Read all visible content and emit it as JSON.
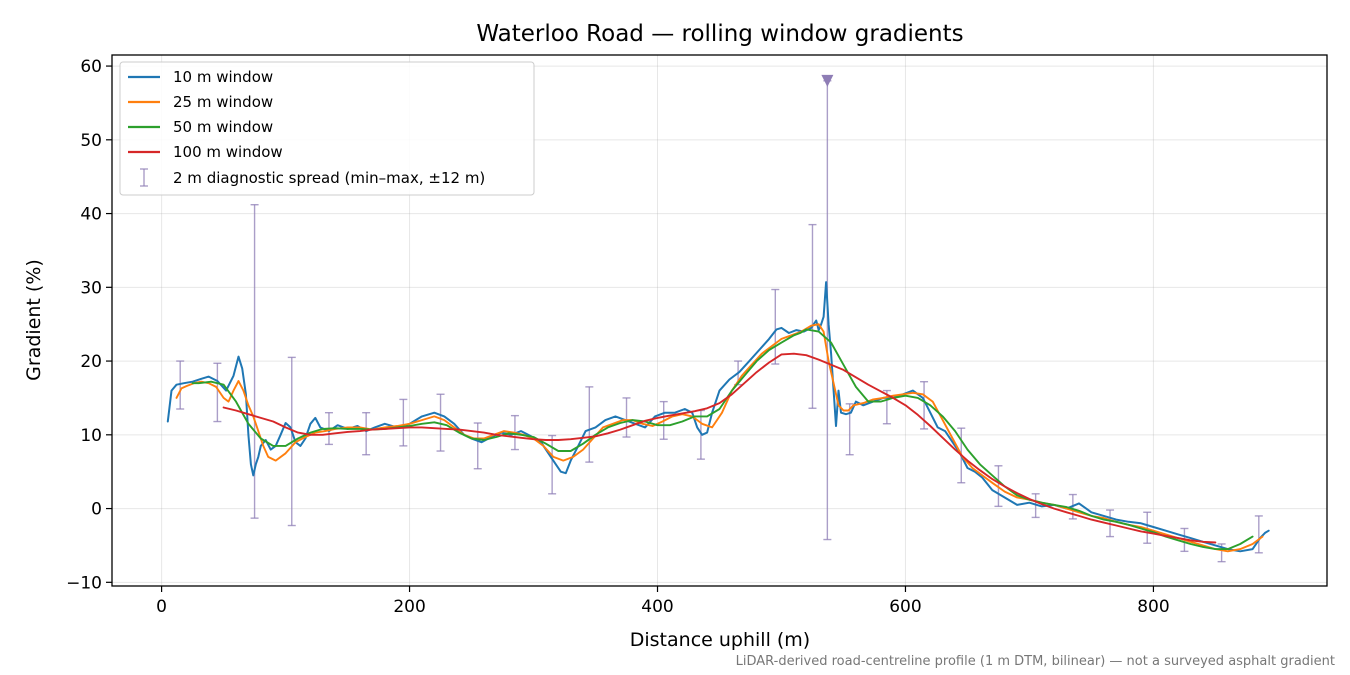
{
  "chart_data": {
    "type": "line",
    "title": "Waterloo Road — rolling window gradients",
    "xlabel": "Distance uphill (m)",
    "ylabel": "Gradient (%)",
    "xlim": [
      -40,
      940
    ],
    "ylim": [
      -10.5,
      61.5
    ],
    "xticks": [
      0,
      200,
      400,
      600,
      800
    ],
    "yticks": [
      -10,
      0,
      10,
      20,
      30,
      40,
      50,
      60
    ],
    "ytick_labels": [
      "−10",
      "0",
      "10",
      "20",
      "30",
      "40",
      "50",
      "60"
    ],
    "grid": true,
    "legend_position": "upper-left",
    "footnote": "LiDAR-derived road-centreline profile (1 m DTM, bilinear) — not a surveyed asphalt gradient",
    "series": [
      {
        "name": "10 m window",
        "color": "#1f77b4",
        "x": [
          5,
          8,
          12,
          18,
          25,
          32,
          38,
          45,
          52,
          58,
          62,
          65,
          68,
          70,
          72,
          74,
          76,
          78,
          80,
          84,
          88,
          92,
          96,
          100,
          104,
          108,
          112,
          116,
          120,
          124,
          128,
          135,
          142,
          150,
          158,
          165,
          172,
          180,
          190,
          200,
          210,
          220,
          228,
          236,
          244,
          250,
          258,
          266,
          274,
          282,
          290,
          298,
          306,
          312,
          318,
          322,
          326,
          330,
          336,
          342,
          350,
          358,
          366,
          374,
          382,
          390,
          398,
          406,
          414,
          422,
          428,
          432,
          436,
          440,
          444,
          450,
          458,
          466,
          474,
          482,
          490,
          496,
          500,
          506,
          512,
          518,
          524,
          528,
          530,
          532,
          534,
          536,
          538,
          540,
          542,
          544,
          546,
          548,
          552,
          556,
          560,
          566,
          574,
          582,
          590,
          598,
          606,
          614,
          620,
          626,
          632,
          638,
          644,
          650,
          656,
          662,
          670,
          680,
          690,
          700,
          710,
          720,
          730,
          740,
          750,
          760,
          770,
          780,
          790,
          800,
          810,
          820,
          830,
          840,
          850,
          860,
          870,
          880,
          886,
          890,
          893
        ],
        "y": [
          11.8,
          16.0,
          16.8,
          17.0,
          17.2,
          17.6,
          17.9,
          17.3,
          16.0,
          18.0,
          20.6,
          19.0,
          15.5,
          10.0,
          6.0,
          4.5,
          6.0,
          7.0,
          8.5,
          9.3,
          8.0,
          8.5,
          10.0,
          11.6,
          11.0,
          9.0,
          8.5,
          9.5,
          11.5,
          12.3,
          11.0,
          10.5,
          11.3,
          10.8,
          11.2,
          10.5,
          11.0,
          11.5,
          11.0,
          11.5,
          12.5,
          13.0,
          12.5,
          11.5,
          10.0,
          9.5,
          9.0,
          9.7,
          10.3,
          10.0,
          10.5,
          9.8,
          9.0,
          7.5,
          6.0,
          5.0,
          4.8,
          6.5,
          8.5,
          10.5,
          11.0,
          12.0,
          12.5,
          12.0,
          11.5,
          11.0,
          12.5,
          13.0,
          13.0,
          13.5,
          13.0,
          11.0,
          10.0,
          10.3,
          13.0,
          16.0,
          17.5,
          18.5,
          20.0,
          21.5,
          23.0,
          24.3,
          24.5,
          23.8,
          24.2,
          24.0,
          24.5,
          25.5,
          24.2,
          25.0,
          26.0,
          30.7,
          25.0,
          21.0,
          16.0,
          11.2,
          16.0,
          13.0,
          12.8,
          13.0,
          14.5,
          14.0,
          14.5,
          15.0,
          15.0,
          15.5,
          16.0,
          15.0,
          13.0,
          11.0,
          10.5,
          9.0,
          7.5,
          5.5,
          5.0,
          4.2,
          2.5,
          1.5,
          0.5,
          0.8,
          0.3,
          0.5,
          0.0,
          0.7,
          -0.5,
          -1.0,
          -1.5,
          -1.8,
          -2.0,
          -2.5,
          -3.0,
          -3.5,
          -4.0,
          -4.5,
          -5.0,
          -5.5,
          -5.8,
          -5.5,
          -4.0,
          -3.3,
          -3.0
        ]
      },
      {
        "name": "25 m window",
        "color": "#ff7f0e",
        "x": [
          12,
          16,
          20,
          26,
          32,
          38,
          44,
          50,
          54,
          58,
          62,
          66,
          70,
          74,
          78,
          82,
          86,
          92,
          100,
          108,
          116,
          124,
          132,
          140,
          150,
          160,
          170,
          180,
          190,
          200,
          210,
          220,
          228,
          236,
          244,
          252,
          260,
          268,
          276,
          284,
          292,
          300,
          308,
          316,
          324,
          332,
          340,
          348,
          356,
          364,
          372,
          380,
          388,
          396,
          404,
          412,
          420,
          428,
          436,
          444,
          452,
          460,
          468,
          476,
          484,
          492,
          500,
          508,
          516,
          524,
          530,
          534,
          538,
          542,
          546,
          550,
          554,
          558,
          566,
          574,
          582,
          590,
          598,
          606,
          614,
          622,
          630,
          638,
          646,
          654,
          662,
          670,
          680,
          690,
          700,
          710,
          720,
          730,
          740,
          750,
          760,
          770,
          780,
          790,
          800,
          810,
          820,
          830,
          840,
          850,
          860,
          870,
          880,
          888
        ],
        "y": [
          15.0,
          16.3,
          16.6,
          17.0,
          17.2,
          17.0,
          16.5,
          15.0,
          14.5,
          16.0,
          17.3,
          16.0,
          14.0,
          12.5,
          10.5,
          8.5,
          7.0,
          6.5,
          7.5,
          9.0,
          9.7,
          10.3,
          10.5,
          10.8,
          11.0,
          11.0,
          10.7,
          11.0,
          11.2,
          11.5,
          12.0,
          12.5,
          12.0,
          11.0,
          10.0,
          9.5,
          9.5,
          10.0,
          10.5,
          10.3,
          10.0,
          9.5,
          8.5,
          7.0,
          6.5,
          7.0,
          8.0,
          9.5,
          11.0,
          11.5,
          12.0,
          12.0,
          11.5,
          11.2,
          11.8,
          12.5,
          12.8,
          12.5,
          11.5,
          11.0,
          13.0,
          16.0,
          18.0,
          19.5,
          21.0,
          22.0,
          23.0,
          23.5,
          24.0,
          24.8,
          25.0,
          24.0,
          20.0,
          17.0,
          14.0,
          13.3,
          13.3,
          14.0,
          14.3,
          14.8,
          15.0,
          15.3,
          15.5,
          15.7,
          15.5,
          14.5,
          12.0,
          9.5,
          7.0,
          5.5,
          4.5,
          3.5,
          2.3,
          1.5,
          1.2,
          0.8,
          0.5,
          0.0,
          -0.5,
          -1.0,
          -1.3,
          -1.8,
          -2.2,
          -2.5,
          -3.0,
          -3.5,
          -4.0,
          -4.5,
          -5.0,
          -5.5,
          -5.8,
          -5.5,
          -4.8,
          -3.8
        ]
      },
      {
        "name": "50 m window",
        "color": "#2ca02c",
        "x": [
          25,
          30,
          40,
          50,
          60,
          70,
          80,
          90,
          100,
          110,
          120,
          130,
          140,
          150,
          160,
          170,
          180,
          190,
          200,
          210,
          220,
          230,
          240,
          250,
          260,
          270,
          280,
          290,
          300,
          310,
          320,
          330,
          340,
          350,
          360,
          370,
          380,
          390,
          400,
          410,
          420,
          430,
          440,
          450,
          460,
          470,
          480,
          490,
          500,
          510,
          515,
          520,
          530,
          540,
          550,
          560,
          570,
          580,
          590,
          600,
          610,
          620,
          630,
          640,
          650,
          660,
          670,
          680,
          690,
          700,
          710,
          720,
          730,
          740,
          750,
          760,
          770,
          780,
          790,
          800,
          810,
          820,
          830,
          840,
          850,
          860,
          870,
          880
        ],
        "y": [
          17.0,
          17.0,
          17.2,
          16.8,
          14.5,
          11.5,
          9.5,
          8.5,
          8.5,
          9.5,
          10.3,
          10.8,
          10.9,
          10.8,
          10.8,
          10.7,
          10.8,
          11.0,
          11.2,
          11.5,
          11.7,
          11.3,
          10.3,
          9.5,
          9.3,
          9.7,
          10.2,
          10.0,
          9.7,
          8.8,
          7.8,
          7.8,
          8.8,
          10.0,
          11.0,
          11.6,
          12.0,
          11.8,
          11.3,
          11.3,
          11.8,
          12.5,
          12.5,
          13.5,
          16.0,
          18.0,
          20.0,
          21.5,
          22.5,
          23.5,
          23.8,
          24.3,
          24.0,
          22.5,
          19.5,
          16.5,
          14.5,
          14.5,
          15.0,
          15.3,
          15.0,
          14.0,
          12.5,
          10.5,
          8.0,
          6.0,
          4.5,
          3.0,
          1.8,
          1.2,
          0.8,
          0.5,
          0.2,
          -0.3,
          -1.0,
          -1.5,
          -1.8,
          -2.2,
          -2.7,
          -3.2,
          -3.8,
          -4.3,
          -4.8,
          -5.2,
          -5.5,
          -5.5,
          -4.8,
          -3.8
        ]
      },
      {
        "name": "100 m window",
        "color": "#d62728",
        "x": [
          50,
          60,
          70,
          80,
          90,
          100,
          110,
          120,
          130,
          140,
          150,
          160,
          170,
          180,
          190,
          200,
          210,
          220,
          230,
          240,
          250,
          260,
          270,
          280,
          290,
          300,
          310,
          320,
          330,
          340,
          350,
          360,
          370,
          380,
          390,
          400,
          410,
          420,
          430,
          440,
          450,
          460,
          470,
          480,
          490,
          500,
          510,
          520,
          530,
          540,
          550,
          560,
          570,
          580,
          590,
          600,
          610,
          620,
          630,
          640,
          650,
          660,
          670,
          680,
          690,
          700,
          710,
          720,
          730,
          740,
          750,
          760,
          770,
          780,
          790,
          800,
          810,
          820,
          830,
          840,
          850
        ],
        "y": [
          13.7,
          13.3,
          12.8,
          12.3,
          11.8,
          11.0,
          10.3,
          10.0,
          10.0,
          10.2,
          10.4,
          10.5,
          10.7,
          10.8,
          10.9,
          11.0,
          11.0,
          10.9,
          10.8,
          10.7,
          10.5,
          10.3,
          10.0,
          9.8,
          9.6,
          9.4,
          9.3,
          9.3,
          9.4,
          9.6,
          9.8,
          10.2,
          10.7,
          11.3,
          11.9,
          12.3,
          12.6,
          12.9,
          13.2,
          13.6,
          14.3,
          15.5,
          17.0,
          18.5,
          19.8,
          20.9,
          21.0,
          20.8,
          20.2,
          19.5,
          18.8,
          17.8,
          16.8,
          15.9,
          15.0,
          14.0,
          12.7,
          11.2,
          9.6,
          8.0,
          6.5,
          5.2,
          4.0,
          3.0,
          2.1,
          1.3,
          0.6,
          0.0,
          -0.5,
          -1.0,
          -1.5,
          -1.9,
          -2.3,
          -2.7,
          -3.1,
          -3.4,
          -3.7,
          -4.0,
          -4.3,
          -4.5,
          -4.6
        ]
      }
    ],
    "errorbars": {
      "name": "2 m diagnostic spread (min–max, ±12 m)",
      "color": "#8e7db5",
      "points": [
        {
          "x": 15,
          "low": 13.5,
          "high": 20.0
        },
        {
          "x": 45,
          "low": 11.8,
          "high": 19.7
        },
        {
          "x": 75,
          "low": -1.3,
          "high": 41.2
        },
        {
          "x": 105,
          "low": -2.3,
          "high": 20.5
        },
        {
          "x": 135,
          "low": 8.7,
          "high": 13.0
        },
        {
          "x": 165,
          "low": 7.3,
          "high": 13.0
        },
        {
          "x": 195,
          "low": 8.5,
          "high": 14.8
        },
        {
          "x": 225,
          "low": 7.8,
          "high": 15.5
        },
        {
          "x": 255,
          "low": 5.4,
          "high": 11.6
        },
        {
          "x": 285,
          "low": 8.0,
          "high": 12.6
        },
        {
          "x": 315,
          "low": 2.0,
          "high": 9.9
        },
        {
          "x": 345,
          "low": 6.3,
          "high": 16.5
        },
        {
          "x": 375,
          "low": 9.7,
          "high": 15.0
        },
        {
          "x": 405,
          "low": 9.4,
          "high": 14.5
        },
        {
          "x": 435,
          "low": 6.7,
          "high": 13.3
        },
        {
          "x": 465,
          "low": 16.8,
          "high": 20.0
        },
        {
          "x": 495,
          "low": 19.6,
          "high": 29.7
        },
        {
          "x": 525,
          "low": 13.6,
          "high": 38.5
        },
        {
          "x": 537,
          "low": -4.2,
          "high": 58.0
        },
        {
          "x": 555,
          "low": 7.3,
          "high": 14.2
        },
        {
          "x": 585,
          "low": 11.5,
          "high": 16.0
        },
        {
          "x": 615,
          "low": 10.8,
          "high": 17.2
        },
        {
          "x": 645,
          "low": 3.5,
          "high": 10.9
        },
        {
          "x": 675,
          "low": 0.3,
          "high": 5.8
        },
        {
          "x": 705,
          "low": -1.2,
          "high": 2.0
        },
        {
          "x": 735,
          "low": -1.4,
          "high": 1.9
        },
        {
          "x": 765,
          "low": -3.8,
          "high": -0.2
        },
        {
          "x": 795,
          "low": -4.7,
          "high": -0.5
        },
        {
          "x": 825,
          "low": -5.8,
          "high": -2.7
        },
        {
          "x": 855,
          "low": -7.2,
          "high": -4.8
        },
        {
          "x": 885,
          "low": -6.0,
          "high": -1.0
        }
      ]
    },
    "marker": {
      "x": 537,
      "y": 58.0,
      "shape": "down-triangle",
      "meaning": "clipped spread beyond axis"
    }
  }
}
